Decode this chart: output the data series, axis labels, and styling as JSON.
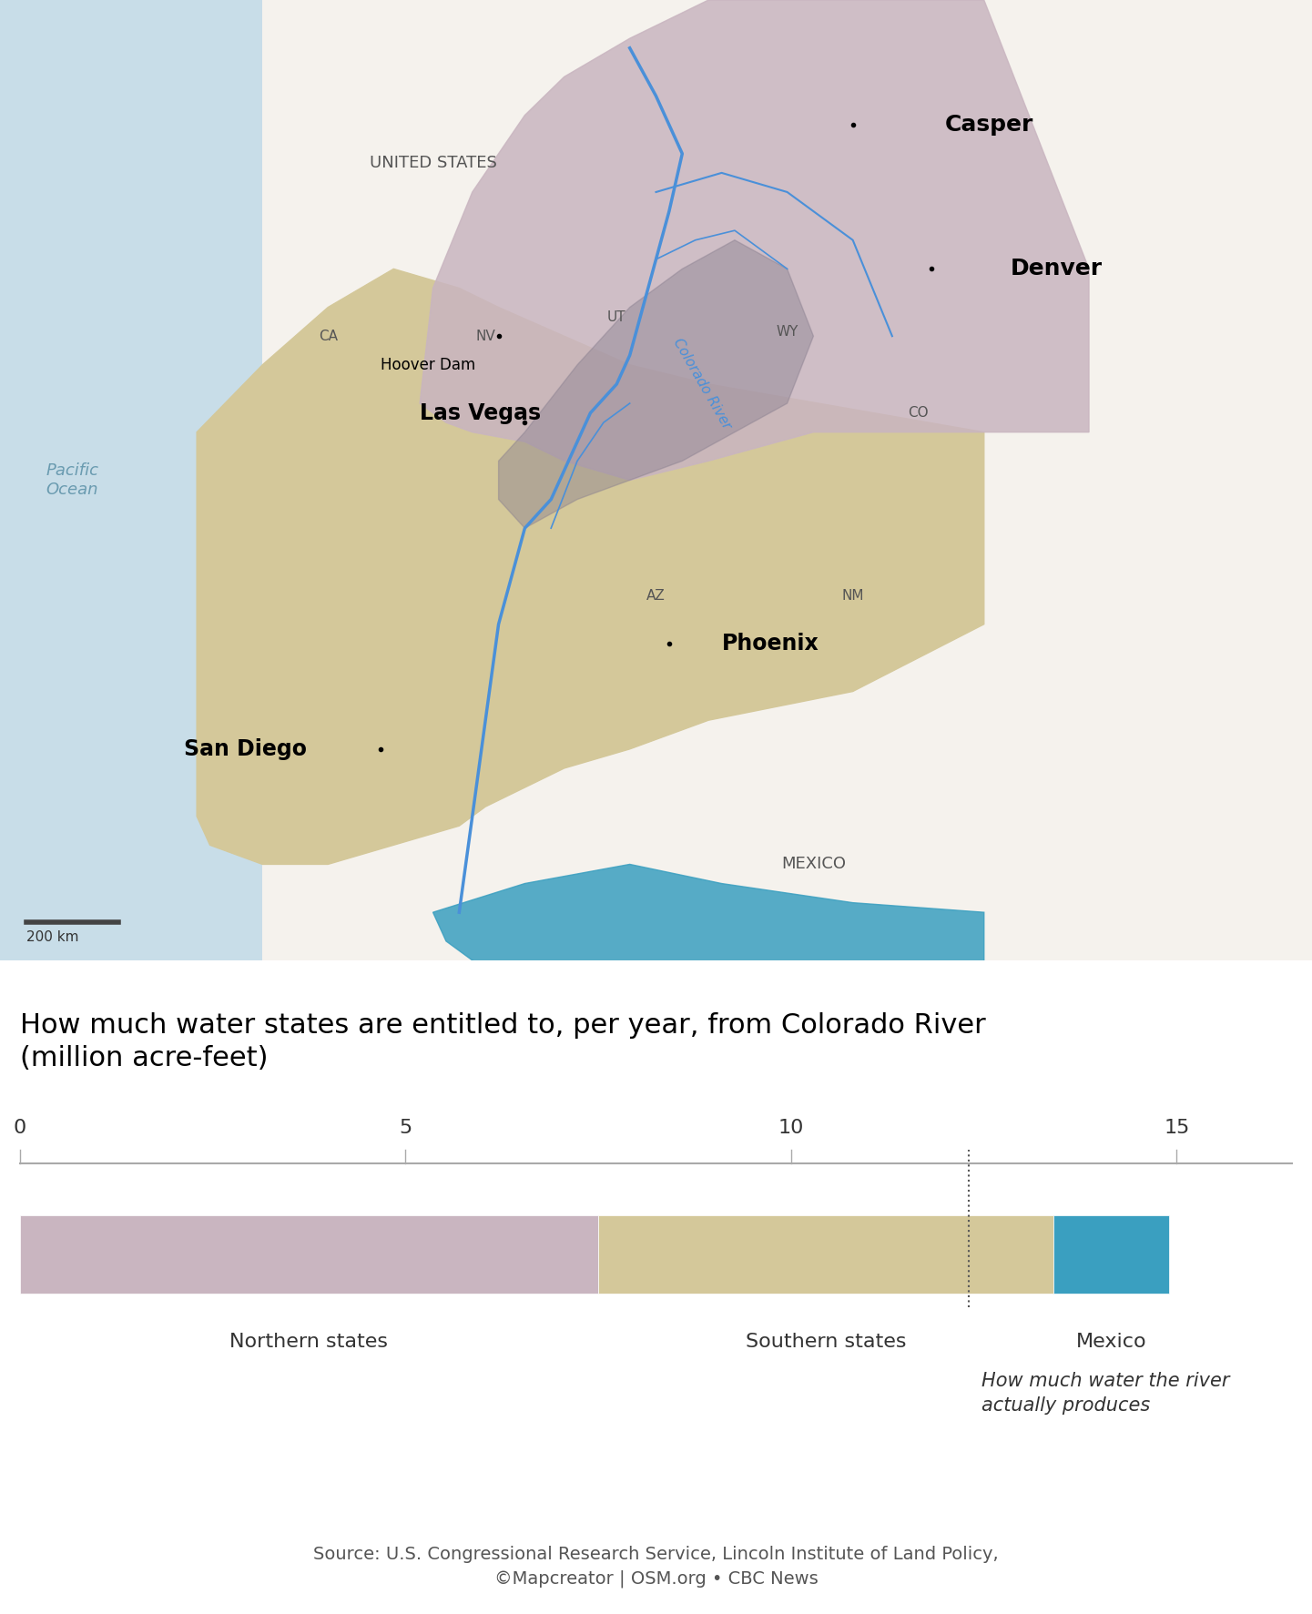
{
  "title": "How much water states are entitled to, per year, from Colorado River\n(million acre-feet)",
  "source": "Source: U.S. Congressional Research Service, Lincoln Institute of Land Policy,\n©Mapcreator | OSM.org • CBC News",
  "bar_segments": [
    {
      "label": "Northern states",
      "value": 7.5,
      "color": "#c9b5c0"
    },
    {
      "label": "Southern states",
      "value": 5.9,
      "color": "#d4c89a"
    },
    {
      "label": "Mexico",
      "value": 1.5,
      "color": "#3a9fc0"
    }
  ],
  "actual_water_value": 12.3,
  "actual_water_label": "How much water the river\nactually produces",
  "axis_ticks": [
    0,
    5,
    10,
    15
  ],
  "axis_max": 16.5,
  "background_color": "#ffffff",
  "map_bg_color": "#c8dde8",
  "title_fontsize": 22,
  "source_fontsize": 14,
  "bar_label_fontsize": 16,
  "axis_label_fontsize": 16
}
